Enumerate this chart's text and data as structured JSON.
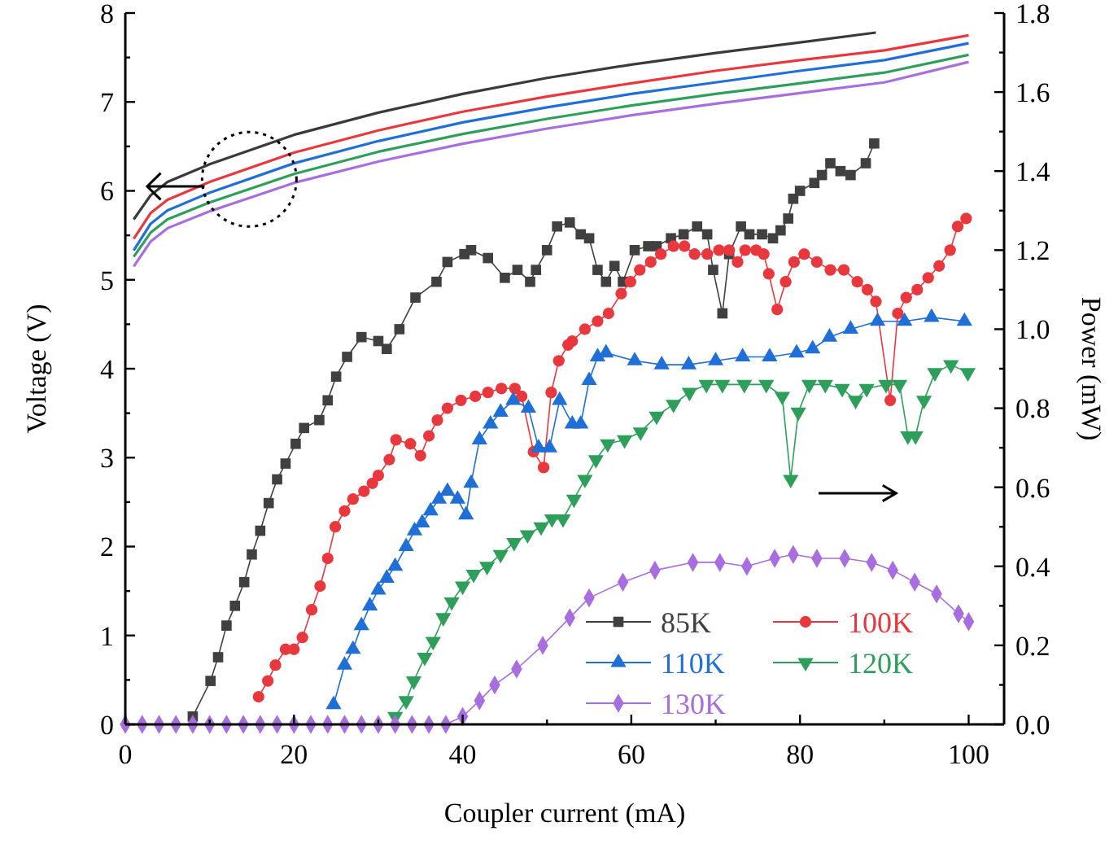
{
  "chart_data": {
    "type": "line",
    "xlabel": "Coupler current (mA)",
    "ylabel": "Voltage (V)",
    "y2label": "Power (mW)",
    "xlim": [
      0,
      104.2
    ],
    "xticks": [
      0,
      {
        "value": 10,
        "label": null
      },
      20,
      {
        "value": 30,
        "label": null
      },
      40,
      {
        "value": 50,
        "label": null
      },
      60,
      {
        "value": 70,
        "label": null
      },
      80,
      {
        "value": 90,
        "label": null
      },
      100
    ],
    "ylim": [
      0,
      8
    ],
    "yticks": [
      0,
      {
        "value": 0.5,
        "label": null
      },
      1,
      {
        "value": 1.5,
        "label": null
      },
      2,
      {
        "value": 2.5,
        "label": null
      },
      3,
      {
        "value": 3.5,
        "label": null
      },
      4,
      {
        "value": 4.5,
        "label": null
      },
      5,
      {
        "value": 5.5,
        "label": null
      },
      6,
      {
        "value": 6.5,
        "label": null
      },
      7,
      {
        "value": 7.5,
        "label": null
      },
      8
    ],
    "y2lim": [
      0,
      1.8
    ],
    "y2ticks": [
      {
        "value": 0,
        "label": "0.0"
      },
      {
        "value": 0.1,
        "label": null
      },
      {
        "value": 0.2,
        "label": "0.2"
      },
      {
        "value": 0.3,
        "label": null
      },
      {
        "value": 0.4,
        "label": "0.4"
      },
      {
        "value": 0.5,
        "label": null
      },
      {
        "value": 0.6,
        "label": "0.6"
      },
      {
        "value": 0.7,
        "label": null
      },
      {
        "value": 0.8,
        "label": "0.8"
      },
      {
        "value": 0.9,
        "label": null
      },
      {
        "value": 1.0,
        "label": "1.0"
      },
      {
        "value": 1.1,
        "label": null
      },
      {
        "value": 1.2,
        "label": "1.2"
      },
      {
        "value": 1.3,
        "label": null
      },
      {
        "value": 1.4,
        "label": "1.4"
      },
      {
        "value": 1.5,
        "label": null
      },
      {
        "value": 1.6,
        "label": "1.6"
      },
      {
        "value": 1.7,
        "label": null
      },
      {
        "value": 1.8,
        "label": "1.8"
      }
    ],
    "grid": false,
    "legend": "bottom right",
    "series": [
      {
        "color": "#3a3a3a",
        "marker": "none",
        "x": [
          1,
          3,
          5,
          10,
          20,
          30,
          40,
          50,
          60,
          70,
          80,
          89
        ],
        "values": [
          5.68,
          5.95,
          6.1,
          6.3,
          6.63,
          6.88,
          7.09,
          7.27,
          7.42,
          7.55,
          7.67,
          7.78
        ]
      },
      {
        "color": "#e8383d",
        "marker": "none",
        "x": [
          1,
          3,
          5,
          10,
          20,
          30,
          40,
          50,
          60,
          70,
          80,
          90,
          100
        ],
        "values": [
          5.46,
          5.75,
          5.9,
          6.1,
          6.43,
          6.68,
          6.89,
          7.06,
          7.21,
          7.35,
          7.47,
          7.58,
          7.75
        ]
      },
      {
        "color": "#1f6fd6",
        "marker": "none",
        "x": [
          1,
          3,
          5,
          10,
          20,
          30,
          40,
          50,
          60,
          70,
          80,
          90,
          100
        ],
        "values": [
          5.33,
          5.63,
          5.78,
          5.98,
          6.31,
          6.56,
          6.77,
          6.94,
          7.09,
          7.22,
          7.35,
          7.47,
          7.66
        ]
      },
      {
        "color": "#2e9e5b",
        "marker": "none",
        "x": [
          1,
          3,
          5,
          10,
          20,
          30,
          40,
          50,
          60,
          70,
          80,
          90,
          100
        ],
        "values": [
          5.26,
          5.53,
          5.68,
          5.87,
          6.19,
          6.44,
          6.64,
          6.81,
          6.96,
          7.09,
          7.21,
          7.33,
          7.53
        ]
      },
      {
        "color": "#a86ee0",
        "marker": "none",
        "x": [
          1,
          3,
          5,
          10,
          20,
          30,
          40,
          50,
          60,
          70,
          80,
          90,
          100
        ],
        "values": [
          5.15,
          5.43,
          5.58,
          5.77,
          6.09,
          6.33,
          6.53,
          6.7,
          6.85,
          6.98,
          7.1,
          7.22,
          7.45
        ]
      },
      {
        "name": "85K",
        "color": "#404040",
        "marker": "square",
        "axis": "y2",
        "x": [
          8,
          10.1,
          11,
          12,
          13,
          14.1,
          15,
          16,
          17,
          18,
          19,
          20.2,
          21.2,
          23,
          24,
          25,
          26.3,
          28,
          30,
          31,
          32.5,
          34.4,
          36.9,
          38.2,
          40.2,
          41,
          43,
          45,
          46.5,
          48,
          48.7,
          50,
          51.2,
          52.7,
          54,
          55,
          56,
          57,
          58,
          59,
          60.4,
          62,
          63,
          64.7,
          66.2,
          67.8,
          69,
          69.7,
          70.8,
          71.6,
          73,
          74,
          75.5,
          76.8,
          77.7,
          78.6,
          79.2,
          80,
          81.7,
          82.6,
          83.6,
          84.8,
          86,
          87.8,
          88.8
        ],
        "values": [
          0.02,
          0.11,
          0.17,
          0.25,
          0.3,
          0.36,
          0.43,
          0.49,
          0.56,
          0.62,
          0.66,
          0.71,
          0.75,
          0.77,
          0.82,
          0.88,
          0.93,
          0.98,
          0.97,
          0.95,
          1.0,
          1.08,
          1.12,
          1.17,
          1.19,
          1.2,
          1.18,
          1.13,
          1.15,
          1.12,
          1.15,
          1.2,
          1.26,
          1.27,
          1.24,
          1.23,
          1.15,
          1.12,
          1.16,
          1.12,
          1.2,
          1.21,
          1.21,
          1.23,
          1.24,
          1.26,
          1.24,
          1.15,
          1.04,
          1.19,
          1.26,
          1.24,
          1.24,
          1.23,
          1.25,
          1.28,
          1.33,
          1.35,
          1.37,
          1.39,
          1.42,
          1.4,
          1.39,
          1.42,
          1.47
        ]
      },
      {
        "name": "100K",
        "color": "#e8383d",
        "marker": "circle",
        "axis": "y2",
        "x": [
          15.8,
          16.9,
          17.8,
          19,
          20,
          21,
          22.1,
          23.1,
          24,
          24.9,
          26,
          27,
          28.3,
          29.3,
          30,
          31.3,
          32.1,
          33.8,
          35,
          36,
          37,
          38.2,
          39.8,
          41.5,
          43,
          44.6,
          46.2,
          47,
          48.4,
          49.6,
          50.5,
          51.4,
          52.5,
          53,
          54.5,
          56,
          57.3,
          58.8,
          59.9,
          61,
          62.3,
          63.5,
          65,
          66.3,
          67.5,
          69,
          70.4,
          71.6,
          72.6,
          73.5,
          74.8,
          75.7,
          76.3,
          77.3,
          78.3,
          79.3,
          80.5,
          82,
          83.6,
          85.2,
          86.8,
          88,
          89,
          90.7,
          91.6,
          92.6,
          93.9,
          95.2,
          96.5,
          97.8,
          98.7,
          99.7
        ],
        "values": [
          0.07,
          0.11,
          0.15,
          0.19,
          0.19,
          0.22,
          0.29,
          0.35,
          0.42,
          0.5,
          0.54,
          0.57,
          0.59,
          0.61,
          0.63,
          0.67,
          0.72,
          0.71,
          0.68,
          0.73,
          0.77,
          0.8,
          0.82,
          0.83,
          0.84,
          0.85,
          0.85,
          0.83,
          0.69,
          0.65,
          0.84,
          0.92,
          0.96,
          0.97,
          1.0,
          1.02,
          1.04,
          1.09,
          1.12,
          1.15,
          1.17,
          1.19,
          1.21,
          1.21,
          1.19,
          1.19,
          1.2,
          1.2,
          1.17,
          1.2,
          1.2,
          1.19,
          1.14,
          1.05,
          1.12,
          1.17,
          1.19,
          1.17,
          1.15,
          1.15,
          1.12,
          1.1,
          1.07,
          0.82,
          1.04,
          1.08,
          1.1,
          1.13,
          1.16,
          1.2,
          1.26,
          1.28
        ]
      },
      {
        "name": "110K",
        "color": "#1f6fd6",
        "marker": "triangle",
        "axis": "y2",
        "x": [
          24.7,
          26,
          27,
          28,
          29,
          30,
          31,
          32,
          33.3,
          34.3,
          35.2,
          36.2,
          37.2,
          38.2,
          39.4,
          40.4,
          41,
          42,
          43.3,
          44.5,
          46,
          47.8,
          49,
          50.3,
          51.5,
          53,
          54,
          55,
          56,
          57,
          60.4,
          63.6,
          66.8,
          70,
          73.2,
          76.4,
          79.6,
          81.5,
          83.5,
          86,
          89.2,
          92.4,
          95.6,
          99.5
        ],
        "values": [
          0.05,
          0.15,
          0.19,
          0.25,
          0.3,
          0.34,
          0.37,
          0.4,
          0.45,
          0.49,
          0.51,
          0.54,
          0.57,
          0.59,
          0.57,
          0.53,
          0.61,
          0.72,
          0.76,
          0.79,
          0.82,
          0.8,
          0.7,
          0.7,
          0.82,
          0.76,
          0.76,
          0.87,
          0.93,
          0.94,
          0.92,
          0.91,
          0.91,
          0.92,
          0.93,
          0.93,
          0.94,
          0.95,
          0.98,
          1.0,
          1.02,
          1.02,
          1.03,
          1.02
        ]
      },
      {
        "name": "120K",
        "color": "#2e9e5b",
        "marker": "triangle-down",
        "axis": "y2",
        "x": [
          32,
          33.3,
          34.2,
          35.5,
          36.5,
          37.7,
          38.7,
          40,
          41.3,
          42.9,
          44.5,
          46.1,
          47.7,
          49.3,
          50.6,
          51.9,
          53.2,
          54.5,
          55.8,
          57.2,
          59.2,
          61.1,
          63,
          65,
          66.9,
          68.9,
          70.8,
          73.4,
          76,
          77.9,
          78.9,
          79.8,
          81.1,
          83,
          85,
          86.6,
          87.9,
          90.2,
          91.8,
          92.8,
          93.7,
          94.7,
          96,
          97.9,
          99.9
        ],
        "values": [
          0.02,
          0.06,
          0.11,
          0.17,
          0.21,
          0.27,
          0.31,
          0.35,
          0.38,
          0.4,
          0.43,
          0.46,
          0.48,
          0.5,
          0.52,
          0.52,
          0.57,
          0.62,
          0.67,
          0.71,
          0.72,
          0.74,
          0.78,
          0.81,
          0.84,
          0.86,
          0.86,
          0.86,
          0.86,
          0.83,
          0.62,
          0.79,
          0.86,
          0.86,
          0.85,
          0.82,
          0.85,
          0.86,
          0.86,
          0.73,
          0.73,
          0.82,
          0.89,
          0.91,
          0.89
        ]
      },
      {
        "name": "130K",
        "color": "#a86ee0",
        "marker": "diamond",
        "axis": "y2",
        "x": [
          0,
          2,
          4,
          6,
          8,
          10,
          12,
          14,
          16,
          18,
          20,
          22,
          24,
          26,
          28,
          30,
          32,
          34,
          36,
          38,
          40,
          42,
          43.8,
          46.4,
          49.5,
          52.7,
          55,
          59,
          62.8,
          67.3,
          70.5,
          73.7,
          77,
          79.2,
          82,
          85.3,
          88.5,
          91,
          93.6,
          96.2,
          98.8,
          100
        ],
        "values": [
          0,
          0,
          0,
          0,
          0,
          0,
          0,
          0,
          0,
          0,
          0,
          0,
          0,
          0,
          0,
          0,
          0,
          0,
          0,
          0,
          0.02,
          0.06,
          0.1,
          0.14,
          0.2,
          0.27,
          0.32,
          0.36,
          0.39,
          0.41,
          0.41,
          0.4,
          0.42,
          0.43,
          0.42,
          0.42,
          0.41,
          0.39,
          0.36,
          0.33,
          0.28,
          0.26
        ]
      }
    ]
  }
}
